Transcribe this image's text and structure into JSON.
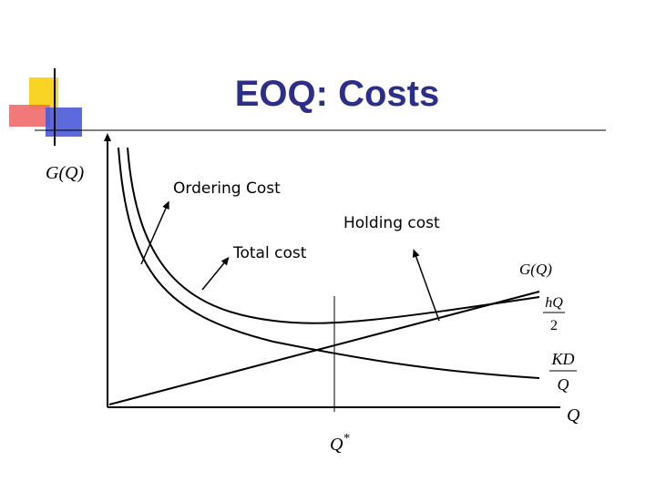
{
  "title": "EOQ: Costs",
  "axes": {
    "y_label": "G(Q)",
    "x_label": "Q"
  },
  "annotations": {
    "ordering": "Ordering Cost",
    "holding": "Holding cost",
    "total": "Total cost"
  },
  "curve_labels": {
    "total": "G(Q)",
    "holding": {
      "numerator": "hQ",
      "denominator": "2"
    },
    "ordering": {
      "numerator": "KD",
      "denominator": "Q"
    }
  },
  "optimum": {
    "base": "Q",
    "sup": "*"
  }
}
